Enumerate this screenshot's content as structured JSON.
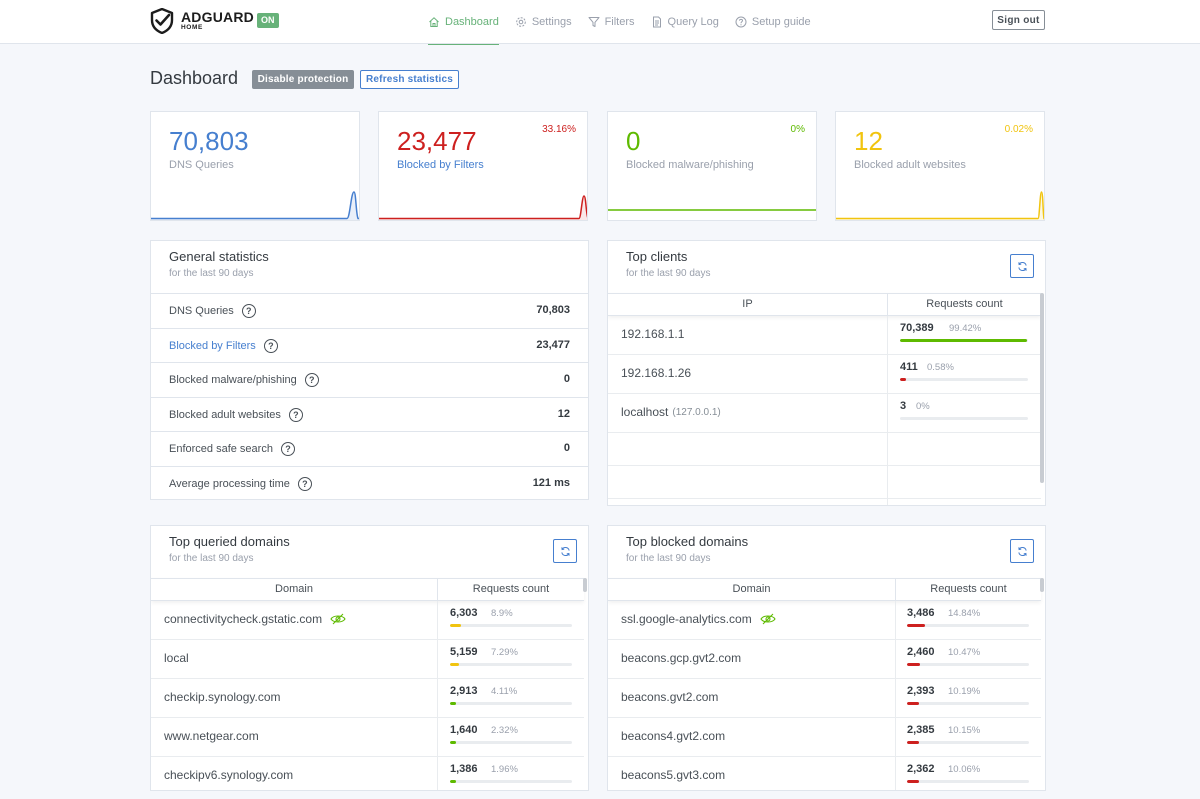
{
  "header": {
    "logo_title": "ADGUARD",
    "logo_sub": "HOME",
    "status_badge": "ON",
    "nav": [
      {
        "label": "Dashboard",
        "icon": "home-icon"
      },
      {
        "label": "Settings",
        "icon": "gear-icon"
      },
      {
        "label": "Filters",
        "icon": "filter-icon"
      },
      {
        "label": "Query Log",
        "icon": "document-icon"
      },
      {
        "label": "Setup guide",
        "icon": "help-circle-icon"
      }
    ],
    "sign_out": "Sign out"
  },
  "page": {
    "title": "Dashboard",
    "disable_protection": "Disable protection",
    "refresh_statistics": "Refresh statistics"
  },
  "counters": [
    {
      "value": "70,803",
      "label": "DNS Queries",
      "percent": "",
      "color": "#467fcf"
    },
    {
      "value": "23,477",
      "label": "Blocked by Filters",
      "percent": "33.16%",
      "color": "#cd201f"
    },
    {
      "value": "0",
      "label": "Blocked malware/phishing",
      "percent": "0%",
      "color": "#5eba00"
    },
    {
      "value": "12",
      "label": "Blocked adult websites",
      "percent": "0.02%",
      "color": "#f1c40f"
    }
  ],
  "general_stats": {
    "title": "General statistics",
    "subtitle": "for the last 90 days",
    "rows": [
      {
        "label": "DNS Queries",
        "value": "70,803"
      },
      {
        "label": "Blocked by Filters",
        "value": "23,477"
      },
      {
        "label": "Blocked malware/phishing",
        "value": "0"
      },
      {
        "label": "Blocked adult websites",
        "value": "12"
      },
      {
        "label": "Enforced safe search",
        "value": "0"
      },
      {
        "label": "Average processing time",
        "value": "121 ms"
      }
    ]
  },
  "top_clients": {
    "title": "Top clients",
    "subtitle": "for the last 90 days",
    "col_ip": "IP",
    "col_count": "Requests count",
    "rows": [
      {
        "ip": "192.168.1.1",
        "sub": "",
        "count": "70,389",
        "percent": "99.42%",
        "fraction": 0.9942,
        "color": "#5eba00"
      },
      {
        "ip": "192.168.1.26",
        "sub": "",
        "count": "411",
        "percent": "0.58%",
        "fraction": 0.0058,
        "color": "#cd201f"
      },
      {
        "ip": "localhost",
        "sub": "(127.0.0.1)",
        "count": "3",
        "percent": "0%",
        "fraction": 0,
        "color": "#cd201f"
      }
    ]
  },
  "top_queried": {
    "title": "Top queried domains",
    "subtitle": "for the last 90 days",
    "col_domain": "Domain",
    "col_count": "Requests count",
    "rows": [
      {
        "domain": "connectivitycheck.gstatic.com",
        "count": "6,303",
        "percent": "8.9%",
        "fraction": 0.089,
        "color": "#f1c40f",
        "icon": true
      },
      {
        "domain": "local",
        "count": "5,159",
        "percent": "7.29%",
        "fraction": 0.0729,
        "color": "#f1c40f",
        "icon": false
      },
      {
        "domain": "checkip.synology.com",
        "count": "2,913",
        "percent": "4.11%",
        "fraction": 0.0411,
        "color": "#5eba00",
        "icon": false
      },
      {
        "domain": "www.netgear.com",
        "count": "1,640",
        "percent": "2.32%",
        "fraction": 0.0232,
        "color": "#5eba00",
        "icon": false
      },
      {
        "domain": "checkipv6.synology.com",
        "count": "1,386",
        "percent": "1.96%",
        "fraction": 0.0196,
        "color": "#5eba00",
        "icon": false
      }
    ]
  },
  "top_blocked": {
    "title": "Top blocked domains",
    "subtitle": "for the last 90 days",
    "col_domain": "Domain",
    "col_count": "Requests count",
    "rows": [
      {
        "domain": "ssl.google-analytics.com",
        "count": "3,486",
        "percent": "14.84%",
        "fraction": 0.1484,
        "color": "#cd201f",
        "icon": true
      },
      {
        "domain": "beacons.gcp.gvt2.com",
        "count": "2,460",
        "percent": "10.47%",
        "fraction": 0.1047,
        "color": "#cd201f",
        "icon": false
      },
      {
        "domain": "beacons.gvt2.com",
        "count": "2,393",
        "percent": "10.19%",
        "fraction": 0.1019,
        "color": "#cd201f",
        "icon": false
      },
      {
        "domain": "beacons4.gvt2.com",
        "count": "2,385",
        "percent": "10.15%",
        "fraction": 0.1015,
        "color": "#cd201f",
        "icon": false
      },
      {
        "domain": "beacons5.gvt3.com",
        "count": "2,362",
        "percent": "10.06%",
        "fraction": 0.1006,
        "color": "#cd201f",
        "icon": false
      }
    ]
  }
}
